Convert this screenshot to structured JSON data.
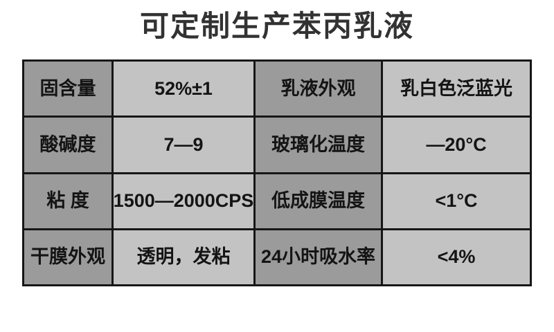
{
  "page": {
    "title": "可定制生产苯丙乳液"
  },
  "colors": {
    "page_bg": "#ffffff",
    "label_cell_bg": "#9b9b9b",
    "value_cell_bg": "#c3c3c3",
    "grid_border": "#161616",
    "title_text": "#323232",
    "cell_text": "#141414"
  },
  "spec_table": {
    "rows": [
      {
        "label": "固含量",
        "value": "52%±1",
        "label2": "乳液外观",
        "value2": "乳白色泛蓝光"
      },
      {
        "label": "酸碱度",
        "value": "7—9",
        "label2": "玻璃化温度",
        "value2": "—20°C"
      },
      {
        "label": "粘 度",
        "value": "1500—2000CPS",
        "label2": "低成膜温度",
        "value2": "<1°C"
      },
      {
        "label": "干膜外观",
        "value": "透明，发粘",
        "label2": "24小时吸水率",
        "value2": "<4%"
      }
    ]
  }
}
